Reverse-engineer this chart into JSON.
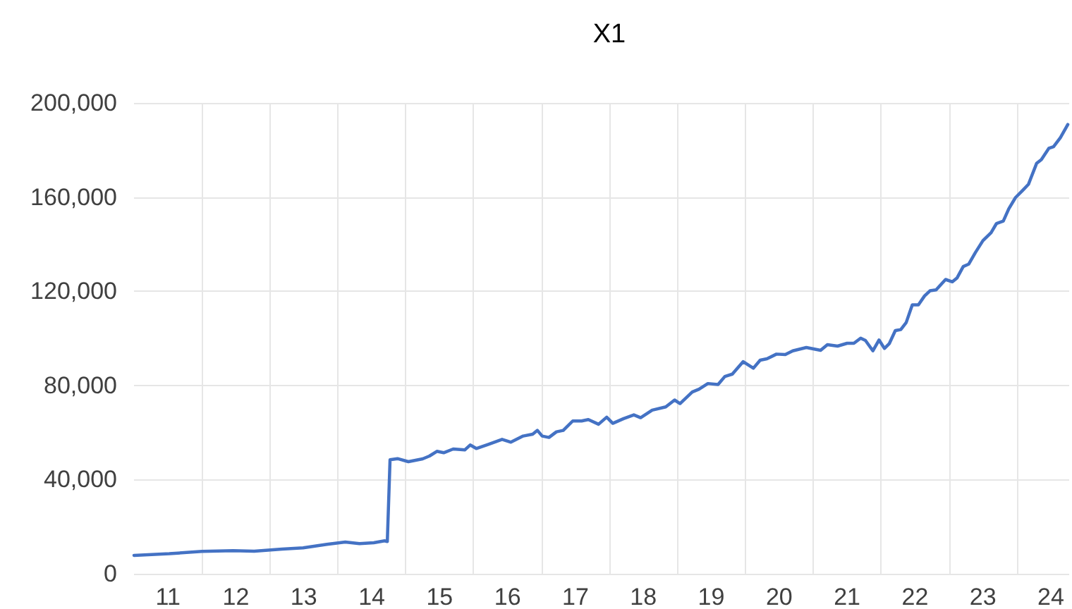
{
  "chart_data": {
    "type": "line",
    "title": "X1",
    "marker": "none",
    "grid": true,
    "xlim": [
      11,
      24.77
    ],
    "xticks": [
      {
        "value": 11.5,
        "label": "11"
      },
      {
        "value": 12,
        "label": null
      },
      {
        "value": 12.5,
        "label": "12"
      },
      {
        "value": 13,
        "label": null
      },
      {
        "value": 13.5,
        "label": "13"
      },
      {
        "value": 14,
        "label": null
      },
      {
        "value": 14.5,
        "label": "14"
      },
      {
        "value": 15,
        "label": null
      },
      {
        "value": 15.5,
        "label": "15"
      },
      {
        "value": 16,
        "label": null
      },
      {
        "value": 16.5,
        "label": "16"
      },
      {
        "value": 17,
        "label": null
      },
      {
        "value": 17.5,
        "label": "17"
      },
      {
        "value": 18,
        "label": null
      },
      {
        "value": 18.5,
        "label": "18"
      },
      {
        "value": 19,
        "label": null
      },
      {
        "value": 19.5,
        "label": "19"
      },
      {
        "value": 20,
        "label": null
      },
      {
        "value": 20.5,
        "label": "20"
      },
      {
        "value": 21,
        "label": null
      },
      {
        "value": 21.5,
        "label": "21"
      },
      {
        "value": 22,
        "label": null
      },
      {
        "value": 22.5,
        "label": "22"
      },
      {
        "value": 23,
        "label": null
      },
      {
        "value": 23.5,
        "label": "23"
      },
      {
        "value": 24,
        "label": null
      },
      {
        "value": 24.5,
        "label": "24"
      }
    ],
    "ylim": [
      0,
      200000
    ],
    "yticks": [
      0,
      {
        "value": 40000,
        "label": "40,000"
      },
      {
        "value": 80000,
        "label": "80,000"
      },
      {
        "value": 120000,
        "label": "120,000"
      },
      {
        "value": 160000,
        "label": "160,000"
      },
      {
        "value": 200000,
        "label": "200,000"
      }
    ],
    "series": [
      {
        "color": "#4472c4",
        "x": [
          11.0,
          11.52,
          12.0,
          12.46,
          12.77,
          13.18,
          13.49,
          13.84,
          14.11,
          14.32,
          14.53,
          14.69,
          14.73,
          14.77,
          14.88,
          15.04,
          15.25,
          15.35,
          15.46,
          15.56,
          15.7,
          15.87,
          15.95,
          16.04,
          16.22,
          16.42,
          16.55,
          16.73,
          16.87,
          16.94,
          17.01,
          17.11,
          17.22,
          17.32,
          17.46,
          17.59,
          17.69,
          17.84,
          17.96,
          18.05,
          18.21,
          18.36,
          18.46,
          18.63,
          18.83,
          18.96,
          19.04,
          19.22,
          19.32,
          19.45,
          19.6,
          19.7,
          19.81,
          19.97,
          20.12,
          20.22,
          20.32,
          20.46,
          20.59,
          20.7,
          20.9,
          21.11,
          21.21,
          21.36,
          21.5,
          21.6,
          21.7,
          21.77,
          21.88,
          21.97,
          22.05,
          22.12,
          22.21,
          22.29,
          22.37,
          22.46,
          22.55,
          22.64,
          22.72,
          22.81,
          22.95,
          23.05,
          23.12,
          23.21,
          23.29,
          23.39,
          23.5,
          23.62,
          23.7,
          23.8,
          23.88,
          23.98,
          24.09,
          24.17,
          24.29,
          24.36,
          24.47,
          24.54,
          24.64,
          24.75
        ],
        "values": [
          7800,
          8500,
          9500,
          9800,
          9600,
          10500,
          11000,
          12500,
          13500,
          12800,
          13200,
          14000,
          13700,
          48400,
          48900,
          47600,
          48800,
          50000,
          52000,
          51400,
          53000,
          52600,
          54700,
          53200,
          55000,
          57100,
          55900,
          58500,
          59300,
          60900,
          58500,
          57900,
          60300,
          60900,
          64900,
          64900,
          65500,
          63500,
          66500,
          63900,
          65900,
          67500,
          66300,
          69500,
          70900,
          73800,
          72300,
          77200,
          78400,
          80800,
          80400,
          83800,
          84800,
          90100,
          87300,
          90700,
          91300,
          93300,
          93100,
          94700,
          96100,
          94900,
          97300,
          96700,
          97900,
          97900,
          100100,
          99100,
          94700,
          99300,
          95700,
          97700,
          103300,
          103700,
          106700,
          114200,
          114200,
          118000,
          120200,
          120600,
          125000,
          124000,
          125700,
          130500,
          131500,
          136500,
          141500,
          144900,
          148800,
          149800,
          155000,
          159800,
          163000,
          165400,
          174300,
          175900,
          180700,
          181400,
          185200,
          190800
        ]
      }
    ]
  }
}
